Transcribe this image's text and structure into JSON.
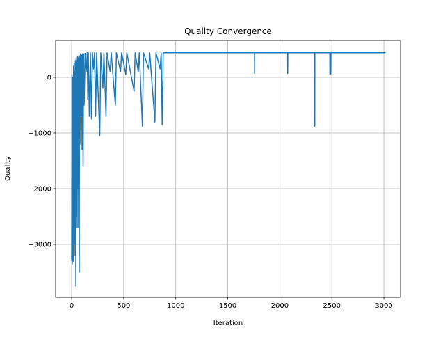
{
  "chart_data": {
    "type": "line",
    "title": "Quality Convergence",
    "x_label": "Iteration",
    "y_label": "Quality",
    "color": "#1f77b4",
    "grid": true,
    "xlim": [
      -154,
      3160
    ],
    "ylim": [
      -3950,
      662
    ],
    "xticks": [
      0,
      500,
      1000,
      1500,
      2000,
      2500,
      3000
    ],
    "yticks": [
      {
        "value": -3000,
        "label": "−3000"
      },
      {
        "value": -2000,
        "label": "−2000"
      },
      {
        "value": -1000,
        "label": "−1000"
      },
      0
    ],
    "x": [
      0,
      3,
      6,
      9,
      12,
      15,
      18,
      21,
      24,
      27,
      30,
      33,
      36,
      40,
      43,
      46,
      50,
      53,
      56,
      60,
      63,
      66,
      70,
      73,
      76,
      80,
      85,
      90,
      95,
      100,
      105,
      110,
      115,
      120,
      130,
      140,
      150,
      155,
      160,
      170,
      180,
      190,
      200,
      210,
      220,
      230,
      240,
      270,
      280,
      300,
      310,
      330,
      340,
      370,
      380,
      420,
      430,
      470,
      480,
      520,
      530,
      600,
      610,
      640,
      650,
      680,
      690,
      740,
      750,
      800,
      810,
      850,
      860,
      870,
      880,
      1755,
      1756,
      1757,
      2075,
      2076,
      2077,
      2335,
      2336,
      2337,
      2480,
      2481,
      2482,
      2490,
      2491,
      3015
    ],
    "values": [
      -3300,
      50,
      -3350,
      -2800,
      0,
      -3300,
      200,
      -2900,
      250,
      -3000,
      100,
      -3200,
      300,
      -3750,
      350,
      -2500,
      300,
      -2700,
      380,
      -2000,
      350,
      -2700,
      400,
      -3500,
      380,
      -1200,
      420,
      -700,
      400,
      -1300,
      420,
      -1600,
      420,
      -500,
      430,
      100,
      440,
      -400,
      440,
      -700,
      440,
      -750,
      440,
      150,
      440,
      -700,
      440,
      -1050,
      440,
      -200,
      440,
      -700,
      440,
      100,
      440,
      -500,
      440,
      100,
      440,
      50,
      440,
      -250,
      440,
      100,
      440,
      -880,
      440,
      150,
      440,
      -800,
      440,
      150,
      440,
      -850,
      440,
      440,
      70,
      440,
      440,
      70,
      440,
      440,
      -880,
      440,
      440,
      60,
      440,
      60,
      440,
      440
    ]
  }
}
